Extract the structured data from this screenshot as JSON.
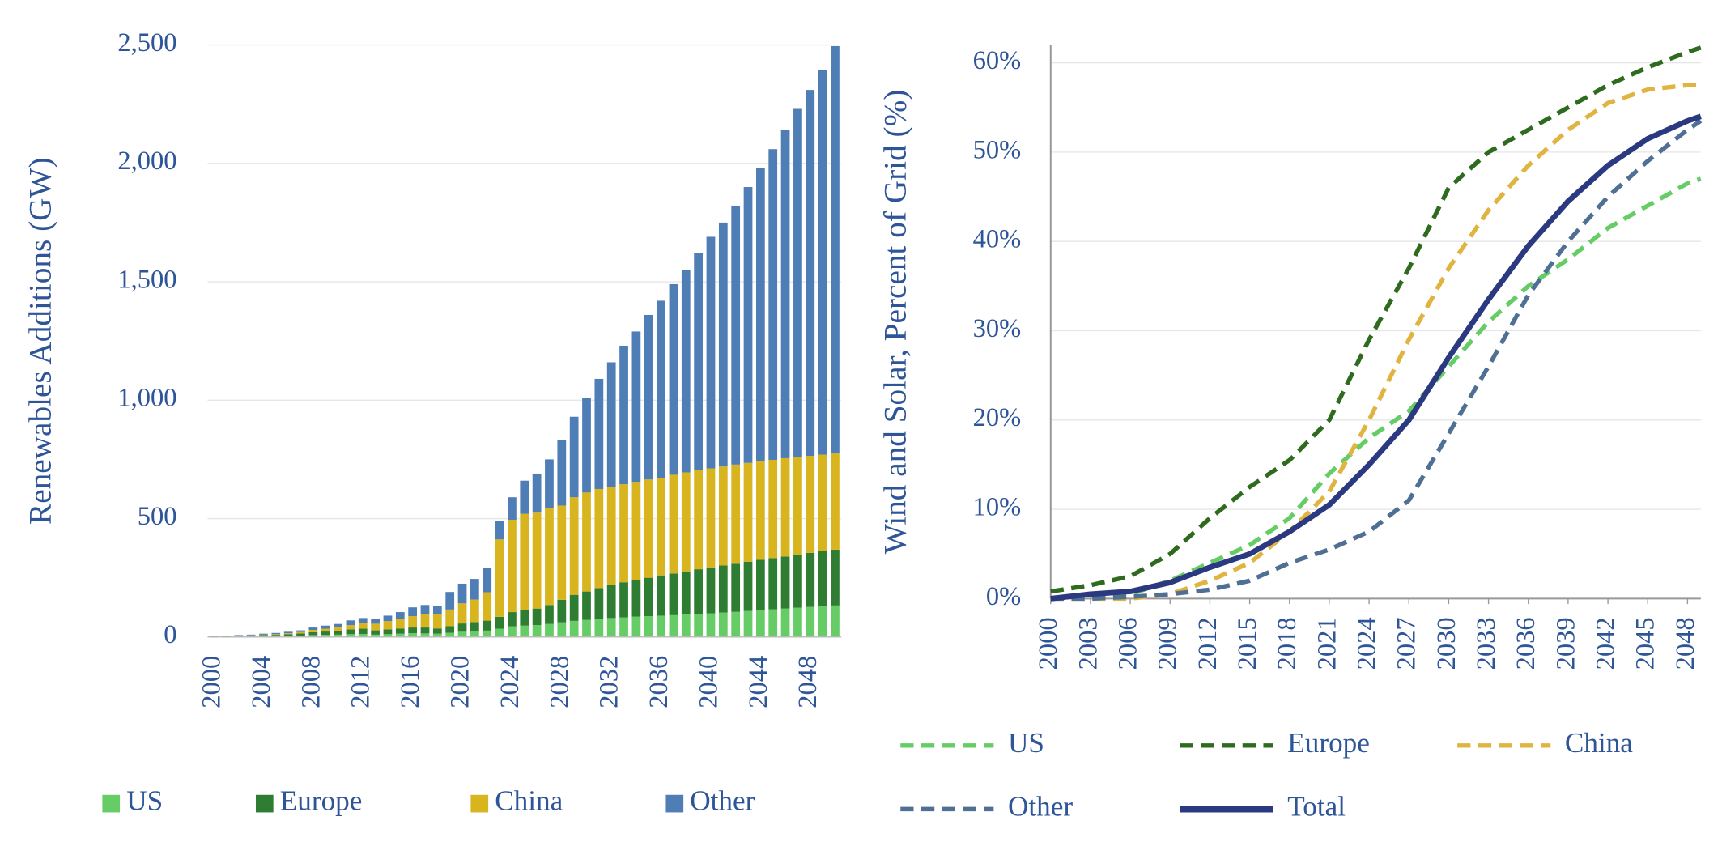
{
  "chart_data": [
    {
      "type": "bar",
      "stacked": true,
      "y_label": "Renewables Additions (GW)",
      "categories": [
        "2000",
        null,
        null,
        null,
        "2004",
        null,
        null,
        null,
        "2008",
        null,
        null,
        null,
        "2012",
        null,
        null,
        null,
        "2016",
        null,
        null,
        null,
        "2020",
        null,
        null,
        null,
        "2024",
        null,
        null,
        null,
        "2028",
        null,
        null,
        null,
        "2032",
        null,
        null,
        null,
        "2036",
        null,
        null,
        null,
        "2040",
        null,
        null,
        null,
        "2044",
        null,
        null,
        null,
        "2048",
        null,
        null
      ],
      "series": [
        {
          "name": "US",
          "color": "#66cc66",
          "values": [
            1,
            1,
            2,
            2,
            3,
            3,
            4,
            5,
            8,
            9,
            10,
            12,
            13,
            10,
            12,
            14,
            16,
            15,
            14,
            18,
            22,
            25,
            27,
            35,
            45,
            48,
            50,
            55,
            62,
            68,
            72,
            76,
            80,
            83,
            86,
            88,
            90,
            92,
            95,
            98,
            100,
            103,
            106,
            110,
            114,
            117,
            120,
            124,
            127,
            130,
            133
          ]
        },
        {
          "name": "Europe",
          "color": "#2e7d32",
          "values": [
            2,
            2,
            3,
            4,
            5,
            6,
            8,
            10,
            12,
            14,
            15,
            20,
            22,
            18,
            20,
            22,
            24,
            25,
            22,
            28,
            35,
            38,
            42,
            50,
            60,
            65,
            70,
            80,
            95,
            110,
            120,
            130,
            140,
            148,
            155,
            162,
            170,
            176,
            182,
            188,
            194,
            199,
            203,
            208,
            212,
            216,
            220,
            224,
            228,
            232,
            236
          ]
        },
        {
          "name": "China",
          "color": "#d8b51f",
          "values": [
            0,
            0,
            0,
            1,
            2,
            3,
            4,
            6,
            10,
            12,
            15,
            18,
            25,
            28,
            35,
            40,
            48,
            55,
            60,
            70,
            85,
            95,
            120,
            327,
            390,
            407,
            405,
            410,
            398,
            412,
            418,
            419,
            415,
            414,
            414,
            415,
            412,
            417,
            418,
            419,
            418,
            418,
            419,
            417,
            416,
            415,
            415,
            412,
            410,
            408,
            406
          ]
        },
        {
          "name": "Other",
          "color": "#4f7db5",
          "values": [
            2,
            3,
            3,
            3,
            4,
            5,
            6,
            7,
            10,
            13,
            15,
            20,
            20,
            19,
            23,
            29,
            37,
            40,
            34,
            74,
            83,
            87,
            101,
            78,
            95,
            140,
            165,
            205,
            275,
            340,
            400,
            465,
            525,
            585,
            635,
            695,
            748,
            805,
            855,
            915,
            978,
            1030,
            1092,
            1165,
            1238,
            1312,
            1385,
            1470,
            1545,
            1625,
            1720
          ]
        }
      ],
      "ylim": [
        0,
        2500
      ],
      "yticks": [
        0,
        500,
        {
          "value": 1000,
          "label": "1,000"
        },
        {
          "value": 1500,
          "label": "1,500"
        },
        {
          "value": 2000,
          "label": "2,000"
        },
        {
          "value": 2500,
          "label": "2,500"
        }
      ],
      "grid": true
    },
    {
      "type": "line",
      "y_label": "Wind and Solar, Percent of Grid (%)",
      "x": [
        2000,
        2003,
        2006,
        2009,
        2012,
        2015,
        2018,
        2021,
        2024,
        2027,
        2030,
        2033,
        2036,
        2039,
        2042,
        2045,
        2048,
        2049
      ],
      "series": [
        {
          "name": "US",
          "color": "#66cc66",
          "dashed": true,
          "values": [
            0,
            0.2,
            0.5,
            2,
            4,
            6,
            9,
            14,
            18,
            21,
            26,
            31,
            35,
            38,
            41.5,
            44,
            46.5,
            47
          ]
        },
        {
          "name": "Europe",
          "color": "#2f6b1f",
          "dashed": true,
          "values": [
            0.8,
            1.5,
            2.5,
            5,
            9,
            12.5,
            15.5,
            20,
            29,
            37,
            46,
            50,
            52.5,
            55,
            57.5,
            59.5,
            61.2,
            61.7
          ]
        },
        {
          "name": "China",
          "color": "#e0b440",
          "dashed": true,
          "values": [
            0,
            0,
            0,
            0.5,
            2,
            4,
            7.5,
            12,
            20,
            29,
            37,
            43.5,
            48.5,
            52.5,
            55.5,
            57,
            57.5,
            57.5
          ]
        },
        {
          "name": "Other",
          "color": "#4f7094",
          "dashed": true,
          "values": [
            0,
            0,
            0.2,
            0.5,
            1,
            2,
            4,
            5.5,
            7.5,
            11,
            18.5,
            26,
            34,
            40,
            45,
            49,
            52.5,
            53.5
          ]
        },
        {
          "name": "Total",
          "color": "#2b3a80",
          "dashed": false,
          "values": [
            0,
            0.5,
            0.8,
            1.8,
            3.5,
            5,
            7.5,
            10.5,
            15,
            20,
            27,
            33.5,
            39.5,
            44.5,
            48.5,
            51.5,
            53.5,
            54
          ]
        }
      ],
      "xlim": [
        2000,
        2049
      ],
      "xticks": [
        2000,
        2003,
        2006,
        2009,
        2012,
        2015,
        2018,
        2021,
        2024,
        2027,
        2030,
        2033,
        2036,
        2039,
        2042,
        2045,
        2048
      ],
      "ylim": [
        0,
        62
      ],
      "yticks": [
        {
          "value": 0,
          "label": "0%"
        },
        {
          "value": 10,
          "label": "10%"
        },
        {
          "value": 20,
          "label": "20%"
        },
        {
          "value": 30,
          "label": "30%"
        },
        {
          "value": 40,
          "label": "40%"
        },
        {
          "value": 50,
          "label": "50%"
        },
        {
          "value": 60,
          "label": "60%"
        }
      ],
      "grid": true
    }
  ]
}
